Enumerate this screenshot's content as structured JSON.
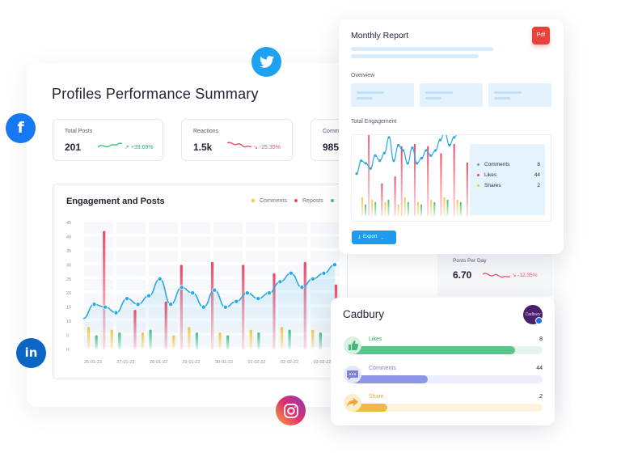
{
  "summary": {
    "title": "Profiles Performance Summary",
    "stats": [
      {
        "label": "Total Posts",
        "value": "201",
        "change": "+39.69%",
        "change_color": "#2fb36b",
        "spark_color": "#3ac27c"
      },
      {
        "label": "Reactions",
        "value": "1.5k",
        "change": "-25.35%",
        "change_color": "#ef4f6d",
        "spark_color": "#ef4f6d"
      },
      {
        "label": "Comm",
        "value": "985"
      }
    ]
  },
  "engagement": {
    "title": "Engagement and Posts",
    "legend": [
      {
        "label": "Comments",
        "color": "#f5c73b"
      },
      {
        "label": "Reposts",
        "color": "#ef4565"
      },
      {
        "label": "",
        "color": "#3fbf7f"
      }
    ]
  },
  "chart_data": {
    "type": "bar",
    "title": "Engagement and Posts",
    "y_ticks": [
      "45",
      "40",
      "35",
      "30",
      "25",
      "20",
      "15",
      "10",
      "5",
      "0"
    ],
    "ylim": [
      0,
      45
    ],
    "x_labels": [
      "26-01-22",
      "27-01-22",
      "28-01-22",
      "29-01-22",
      "30-01-22",
      "01-02-22",
      "02-02-22",
      "03-02-22"
    ],
    "series": [
      {
        "name": "Comments",
        "color": "#f5c73b",
        "values": [
          8,
          0,
          0,
          7,
          0,
          0,
          0,
          6,
          0,
          0,
          0,
          5,
          0,
          8,
          0,
          0,
          0,
          6,
          0,
          0,
          0,
          7,
          0,
          0,
          0,
          8,
          0,
          0,
          0,
          7,
          0,
          0,
          0,
          6
        ]
      },
      {
        "name": "Reposts",
        "color": "#ef4565",
        "values": [
          0,
          0,
          42,
          0,
          0,
          0,
          14,
          0,
          0,
          0,
          17,
          0,
          30,
          0,
          0,
          0,
          31,
          0,
          0,
          0,
          30,
          0,
          0,
          0,
          27,
          0,
          0,
          0,
          31,
          0,
          0,
          0,
          23,
          0
        ]
      },
      {
        "name": "",
        "color": "#3fbf7f",
        "values": [
          0,
          5,
          0,
          0,
          6,
          0,
          0,
          0,
          7,
          0,
          0,
          0,
          0,
          0,
          6,
          0,
          0,
          0,
          5,
          0,
          0,
          0,
          6,
          0,
          0,
          0,
          7,
          0,
          0,
          0,
          6,
          0,
          0,
          0
        ]
      },
      {
        "name": "",
        "color": "#27a9e8",
        "type": "line",
        "values": [
          11,
          16,
          15,
          13,
          18,
          16,
          19,
          25,
          16,
          22,
          20,
          15,
          21,
          15,
          17,
          20,
          18,
          20,
          24,
          27,
          22,
          25,
          27,
          30
        ]
      }
    ]
  },
  "report": {
    "title": "Monthly Report",
    "pdf_label": "Pdf",
    "overview_label": "Overview",
    "total_engagement_label": "Total Engagement",
    "legend": [
      {
        "label": "Comments",
        "value": "8",
        "color": "#3fbf7f"
      },
      {
        "label": "Likes",
        "value": "44",
        "color": "#ef4565"
      },
      {
        "label": "Shares",
        "value": "2",
        "color": "#f5c73b"
      }
    ],
    "export_label": "Export"
  },
  "posts_per_day": {
    "label": "Posts Per Day",
    "value": "6.70",
    "change": "-12.35%",
    "change_color": "#ef4f6d"
  },
  "cadbury": {
    "title": "Cadbury",
    "logo_text": "Cadbury",
    "rows": [
      {
        "label": "Likes",
        "value": "8",
        "fraction": 0.86,
        "color": "#5cc48a",
        "track": "#e4f5ec",
        "label_color": "#2fa964",
        "icon": "thumbs-up-icon"
      },
      {
        "label": "Comments",
        "value": "44",
        "fraction": 0.41,
        "color": "#8d96e2",
        "track": "#eceefb",
        "label_color": "#7b84d6",
        "icon": "comment-icon"
      },
      {
        "label": "Share",
        "value": "2",
        "fraction": 0.2,
        "color": "#f2b94a",
        "track": "#fdf3de",
        "label_color": "#e9a93a",
        "icon": "share-icon"
      }
    ]
  }
}
